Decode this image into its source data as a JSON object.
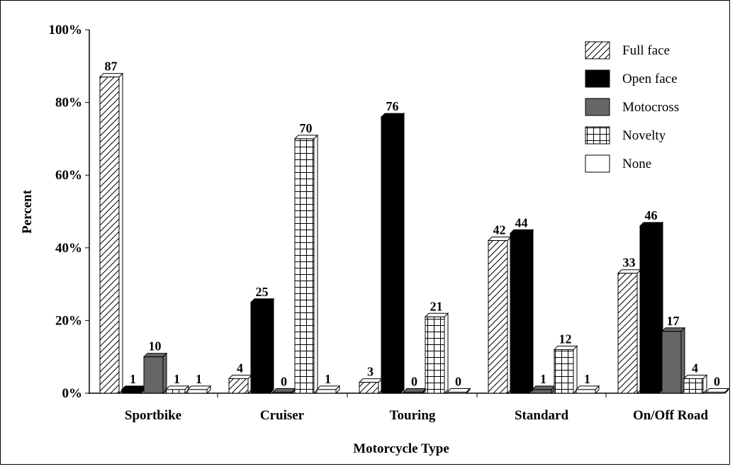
{
  "chart_data": {
    "type": "bar",
    "title": "",
    "xlabel": "Motorcycle Type",
    "ylabel": "Percent",
    "ylim": [
      0,
      100
    ],
    "yticks": [
      {
        "value": 0,
        "label": "0%"
      },
      {
        "value": 20,
        "label": "20%"
      },
      {
        "value": 40,
        "label": "40%"
      },
      {
        "value": 60,
        "label": "60%"
      },
      {
        "value": 80,
        "label": "80%"
      },
      {
        "value": 100,
        "label": "100%"
      }
    ],
    "grid": false,
    "legend_position": "top-right",
    "categories": [
      "Sportbike",
      "Cruiser",
      "Touring",
      "Standard",
      "On/Off Road"
    ],
    "series": [
      {
        "name": "Full face",
        "pattern": "diagonal-hatch",
        "color": "#ffffff",
        "values": [
          87,
          4,
          3,
          42,
          33
        ]
      },
      {
        "name": "Open face",
        "pattern": "solid",
        "color": "#000000",
        "values": [
          1,
          25,
          76,
          44,
          46
        ]
      },
      {
        "name": "Motocross",
        "pattern": "solid",
        "color": "#666666",
        "values": [
          10,
          0,
          0,
          1,
          17
        ]
      },
      {
        "name": "Novelty",
        "pattern": "grid-hatch",
        "color": "#ffffff",
        "values": [
          1,
          70,
          21,
          12,
          4
        ]
      },
      {
        "name": "None",
        "pattern": "solid",
        "color": "#ffffff",
        "values": [
          1,
          1,
          0,
          1,
          0
        ]
      }
    ]
  }
}
